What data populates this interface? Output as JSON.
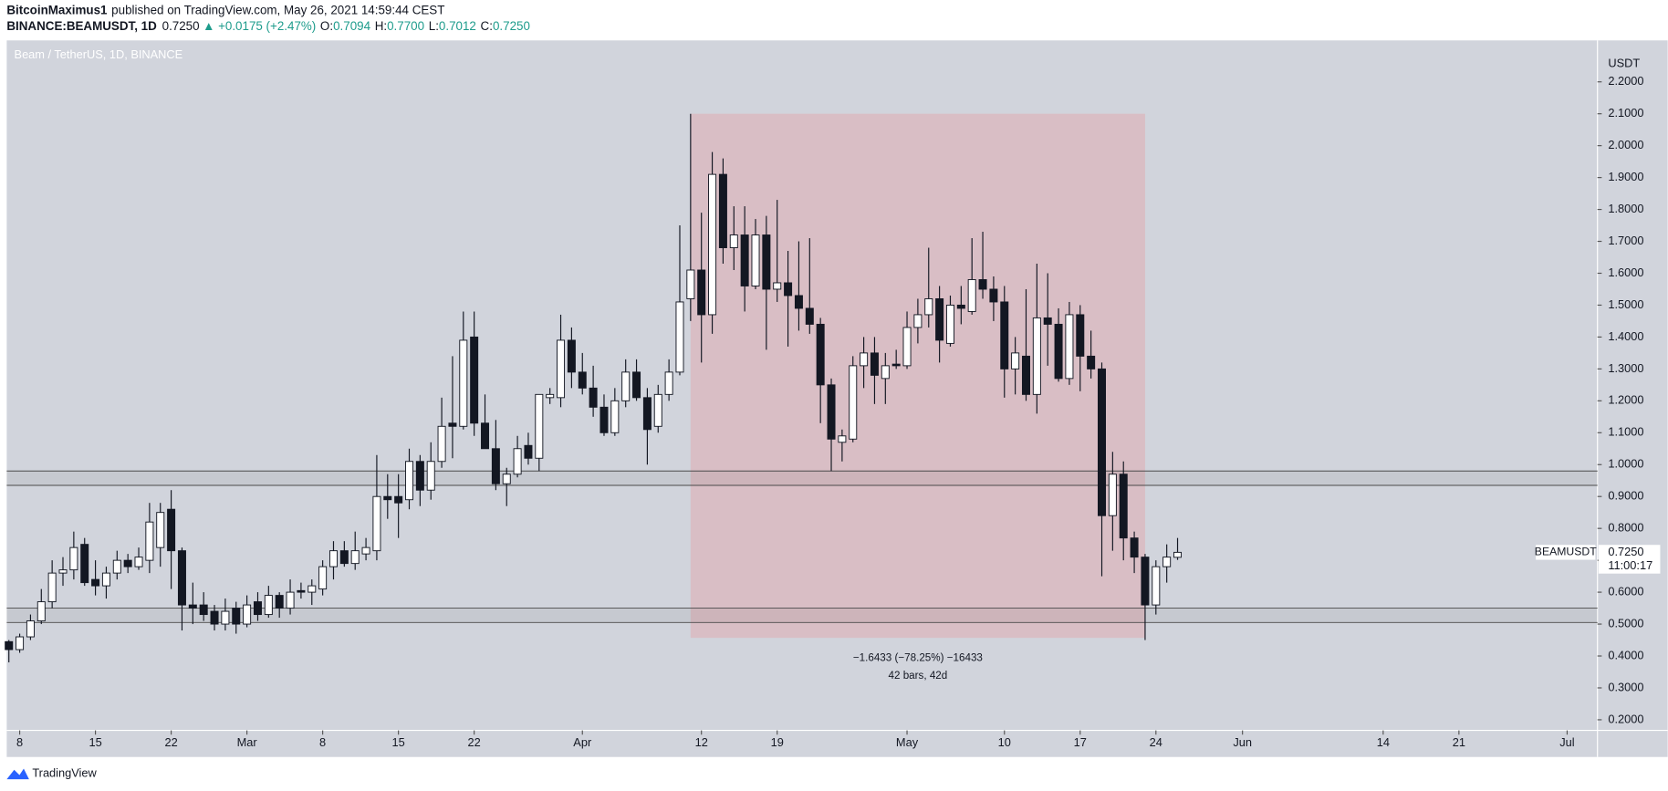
{
  "header": {
    "author": "BitcoinMaximus1",
    "published": "published on TradingView.com, May 26, 2021 14:59:44 CEST",
    "symbol": "BINANCE:BEAMUSDT, 1D",
    "price": "0.7250",
    "change": "▲ +0.0175 (+2.47%)",
    "ohlc": [
      {
        "label": "O:",
        "value": "0.7094"
      },
      {
        "label": "H:",
        "value": "0.7700"
      },
      {
        "label": "L:",
        "value": "0.7012"
      },
      {
        "label": "C:",
        "value": "0.7250"
      }
    ]
  },
  "footer": {
    "brand": "TradingView"
  },
  "chart_data": {
    "type": "candlestick",
    "title": "Beam / TetherUS, 1D, BINANCE",
    "y_unit": "USDT",
    "x": [
      "Feb 7",
      "Feb 8",
      "Feb 9",
      "Feb 10",
      "Feb 11",
      "Feb 12",
      "Feb 13",
      "Feb 14",
      "Feb 15",
      "Feb 16",
      "Feb 17",
      "Feb 18",
      "Feb 19",
      "Feb 20",
      "Feb 21",
      "Feb 22",
      "Feb 23",
      "Feb 24",
      "Feb 25",
      "Feb 26",
      "Feb 27",
      "Feb 28",
      "Mar 1",
      "Mar 2",
      "Mar 3",
      "Mar 4",
      "Mar 5",
      "Mar 6",
      "Mar 7",
      "Mar 8",
      "Mar 9",
      "Mar 10",
      "Mar 11",
      "Mar 12",
      "Mar 13",
      "Mar 14",
      "Mar 15",
      "Mar 16",
      "Mar 17",
      "Mar 18",
      "Mar 19",
      "Mar 20",
      "Mar 21",
      "Mar 22",
      "Mar 23",
      "Mar 24",
      "Mar 25",
      "Mar 26",
      "Mar 27",
      "Mar 28",
      "Mar 29",
      "Mar 30",
      "Mar 31",
      "Apr 1",
      "Apr 2",
      "Apr 3",
      "Apr 4",
      "Apr 5",
      "Apr 6",
      "Apr 7",
      "Apr 8",
      "Apr 9",
      "Apr 10",
      "Apr 11",
      "Apr 12",
      "Apr 13",
      "Apr 14",
      "Apr 15",
      "Apr 16",
      "Apr 17",
      "Apr 18",
      "Apr 19",
      "Apr 20",
      "Apr 21",
      "Apr 22",
      "Apr 23",
      "Apr 24",
      "Apr 25",
      "Apr 26",
      "Apr 27",
      "Apr 28",
      "Apr 29",
      "Apr 30",
      "May 1",
      "May 2",
      "May 3",
      "May 4",
      "May 5",
      "May 6",
      "May 7",
      "May 8",
      "May 9",
      "May 10",
      "May 11",
      "May 12",
      "May 13",
      "May 14",
      "May 15",
      "May 16",
      "May 17",
      "May 18",
      "May 19",
      "May 20",
      "May 21",
      "May 22",
      "May 23",
      "May 24",
      "May 25",
      "May 26"
    ],
    "series": [
      {
        "name": "BEAMUSDT",
        "up_color": "#ffffff",
        "down_color": "#131722",
        "border_color": "#131722",
        "open": [
          0.445,
          0.42,
          0.46,
          0.51,
          0.57,
          0.66,
          0.67,
          0.75,
          0.64,
          0.62,
          0.66,
          0.7,
          0.68,
          0.7,
          0.74,
          0.86,
          0.73,
          0.56,
          0.56,
          0.54,
          0.5,
          0.55,
          0.5,
          0.57,
          0.53,
          0.59,
          0.55,
          0.605,
          0.6,
          0.61,
          0.68,
          0.73,
          0.69,
          0.72,
          0.73,
          0.9,
          0.9,
          0.89,
          1.01,
          0.92,
          1.01,
          1.13,
          1.12,
          1.4,
          1.13,
          1.05,
          0.94,
          0.97,
          1.06,
          1.02,
          1.21,
          1.21,
          1.39,
          1.29,
          1.24,
          1.18,
          1.1,
          1.2,
          1.29,
          1.21,
          1.12,
          1.22,
          1.29,
          1.52,
          1.61,
          1.47,
          1.91,
          1.68,
          1.72,
          1.56,
          1.72,
          1.55,
          1.57,
          1.53,
          1.49,
          1.44,
          1.25,
          1.07,
          1.08,
          1.31,
          1.35,
          1.27,
          1.315,
          1.31,
          1.43,
          1.47,
          1.52,
          1.38,
          1.5,
          1.48,
          1.58,
          1.55,
          1.51,
          1.3,
          1.34,
          1.22,
          1.46,
          1.44,
          1.27,
          1.47,
          1.34,
          1.3,
          0.84,
          0.97,
          0.77,
          0.71,
          0.56,
          0.68,
          0.7094
        ],
        "high": [
          0.45,
          0.47,
          0.53,
          0.61,
          0.7,
          0.71,
          0.79,
          0.77,
          0.7,
          0.68,
          0.73,
          0.72,
          0.74,
          0.88,
          0.88,
          0.92,
          0.74,
          0.63,
          0.6,
          0.56,
          0.58,
          0.57,
          0.59,
          0.6,
          0.62,
          0.6,
          0.64,
          0.63,
          0.64,
          0.7,
          0.76,
          0.76,
          0.79,
          0.77,
          1.03,
          0.97,
          0.97,
          1.05,
          1.03,
          1.07,
          1.21,
          1.34,
          1.48,
          1.48,
          1.22,
          1.14,
          0.99,
          1.09,
          1.1,
          1.22,
          1.24,
          1.47,
          1.43,
          1.35,
          1.31,
          1.22,
          1.24,
          1.33,
          1.33,
          1.24,
          1.25,
          1.33,
          1.75,
          2.1,
          1.79,
          1.98,
          1.96,
          1.81,
          1.81,
          1.77,
          1.78,
          1.83,
          1.67,
          1.7,
          1.71,
          1.46,
          1.27,
          1.11,
          1.34,
          1.4,
          1.4,
          1.35,
          1.36,
          1.48,
          1.52,
          1.68,
          1.56,
          1.53,
          1.56,
          1.71,
          1.73,
          1.59,
          1.56,
          1.4,
          1.55,
          1.63,
          1.6,
          1.49,
          1.51,
          1.5,
          1.42,
          1.32,
          1.04,
          1.01,
          0.79,
          0.72,
          0.7,
          0.75,
          0.77
        ],
        "low": [
          0.38,
          0.41,
          0.45,
          0.5,
          0.55,
          0.62,
          0.64,
          0.62,
          0.59,
          0.58,
          0.64,
          0.66,
          0.67,
          0.66,
          0.68,
          0.61,
          0.48,
          0.5,
          0.51,
          0.48,
          0.48,
          0.47,
          0.49,
          0.51,
          0.52,
          0.52,
          0.53,
          0.58,
          0.56,
          0.59,
          0.64,
          0.68,
          0.67,
          0.7,
          0.7,
          0.83,
          0.77,
          0.86,
          0.87,
          0.89,
          0.99,
          1.02,
          1.11,
          1.09,
          1.05,
          0.92,
          0.87,
          0.96,
          1.0,
          0.98,
          1.19,
          1.18,
          1.24,
          1.22,
          1.15,
          1.09,
          1.09,
          1.18,
          1.2,
          1.0,
          1.1,
          1.2,
          1.28,
          1.45,
          1.32,
          1.41,
          1.63,
          1.61,
          1.48,
          1.55,
          1.36,
          1.51,
          1.37,
          1.42,
          1.41,
          1.13,
          0.98,
          1.01,
          1.07,
          1.24,
          1.19,
          1.19,
          1.3,
          1.3,
          1.38,
          1.43,
          1.32,
          1.37,
          1.44,
          1.47,
          1.52,
          1.45,
          1.21,
          1.22,
          1.2,
          1.16,
          1.31,
          1.26,
          1.25,
          1.23,
          1.27,
          0.65,
          0.73,
          0.7,
          0.66,
          0.45,
          0.53,
          0.63,
          0.7012
        ],
        "close": [
          0.42,
          0.46,
          0.51,
          0.57,
          0.66,
          0.67,
          0.74,
          0.63,
          0.62,
          0.66,
          0.7,
          0.68,
          0.71,
          0.82,
          0.85,
          0.73,
          0.56,
          0.55,
          0.53,
          0.5,
          0.54,
          0.5,
          0.56,
          0.53,
          0.59,
          0.55,
          0.6,
          0.6,
          0.62,
          0.68,
          0.73,
          0.69,
          0.73,
          0.74,
          0.9,
          0.89,
          0.88,
          1.01,
          0.92,
          1.01,
          1.12,
          1.12,
          1.39,
          1.13,
          1.05,
          0.94,
          0.97,
          1.05,
          1.02,
          1.22,
          1.22,
          1.39,
          1.29,
          1.24,
          1.18,
          1.1,
          1.2,
          1.29,
          1.21,
          1.11,
          1.22,
          1.29,
          1.51,
          1.61,
          1.47,
          1.91,
          1.68,
          1.72,
          1.56,
          1.72,
          1.55,
          1.57,
          1.53,
          1.49,
          1.44,
          1.25,
          1.08,
          1.09,
          1.31,
          1.35,
          1.28,
          1.31,
          1.31,
          1.43,
          1.47,
          1.52,
          1.39,
          1.5,
          1.49,
          1.58,
          1.55,
          1.51,
          1.3,
          1.35,
          1.22,
          1.46,
          1.44,
          1.27,
          1.47,
          1.34,
          1.3,
          0.84,
          0.97,
          0.77,
          0.71,
          0.56,
          0.68,
          0.71,
          0.725
        ]
      }
    ],
    "xlim": [
      "Feb 7",
      "Jul 4"
    ],
    "xticks": [
      {
        "value": "Feb 8",
        "label": "8"
      },
      {
        "value": "Feb 15",
        "label": "15"
      },
      {
        "value": "Feb 22",
        "label": "22"
      },
      {
        "value": "Mar 1",
        "label": "Mar"
      },
      {
        "value": "Mar 8",
        "label": "8"
      },
      {
        "value": "Mar 15",
        "label": "15"
      },
      {
        "value": "Mar 22",
        "label": "22"
      },
      {
        "value": "Apr 1",
        "label": "Apr"
      },
      {
        "value": "Apr 12",
        "label": "12"
      },
      {
        "value": "Apr 19",
        "label": "19"
      },
      {
        "value": "May 1",
        "label": "May"
      },
      {
        "value": "May 10",
        "label": "10"
      },
      {
        "value": "May 17",
        "label": "17"
      },
      {
        "value": "May 24",
        "label": "24"
      },
      {
        "value": "Jun 1",
        "label": "Jun"
      },
      {
        "value": "Jun 14",
        "label": "14"
      },
      {
        "value": "Jun 21",
        "label": "21"
      },
      {
        "value": "Jul 1",
        "label": "Jul"
      }
    ],
    "ylim": [
      0.1667,
      2.33
    ],
    "yticks": [
      {
        "value": 0.2,
        "label": "0.2000"
      },
      {
        "value": 0.3,
        "label": "0.3000"
      },
      {
        "value": 0.4,
        "label": "0.4000"
      },
      {
        "value": 0.5,
        "label": "0.5000"
      },
      {
        "value": 0.6,
        "label": "0.6000"
      },
      {
        "value": 0.7,
        "label": "0.7000"
      },
      {
        "value": 0.8,
        "label": "0.8000"
      },
      {
        "value": 0.9,
        "label": "0.9000"
      },
      {
        "value": 1.0,
        "label": "1.0000"
      },
      {
        "value": 1.1,
        "label": "1.1000"
      },
      {
        "value": 1.2,
        "label": "1.2000"
      },
      {
        "value": 1.3,
        "label": "1.3000"
      },
      {
        "value": 1.4,
        "label": "1.4000"
      },
      {
        "value": 1.5,
        "label": "1.5000"
      },
      {
        "value": 1.6,
        "label": "1.6000"
      },
      {
        "value": 1.7,
        "label": "1.7000"
      },
      {
        "value": 1.8,
        "label": "1.8000"
      },
      {
        "value": 1.9,
        "label": "1.9000"
      },
      {
        "value": 2.0,
        "label": "2.0000"
      },
      {
        "value": 2.1,
        "label": "2.1000"
      },
      {
        "value": 2.2,
        "label": "2.2000"
      }
    ],
    "grid": false,
    "annotations": {
      "bands": [
        {
          "low": 0.935,
          "high": 0.98
        },
        {
          "low": 0.505,
          "high": 0.55
        }
      ],
      "range": {
        "x0": "Apr 11",
        "x1": "May 23",
        "top": 2.1,
        "bottom": 0.4567,
        "label": "−1.6433 (−78.25%) −16433",
        "sublabel": "42 bars, 42d",
        "color": "#e3a3a8"
      }
    },
    "price_label": {
      "name": "BEAMUSDT",
      "value": "0.7250",
      "countdown": "11:00:17"
    }
  }
}
